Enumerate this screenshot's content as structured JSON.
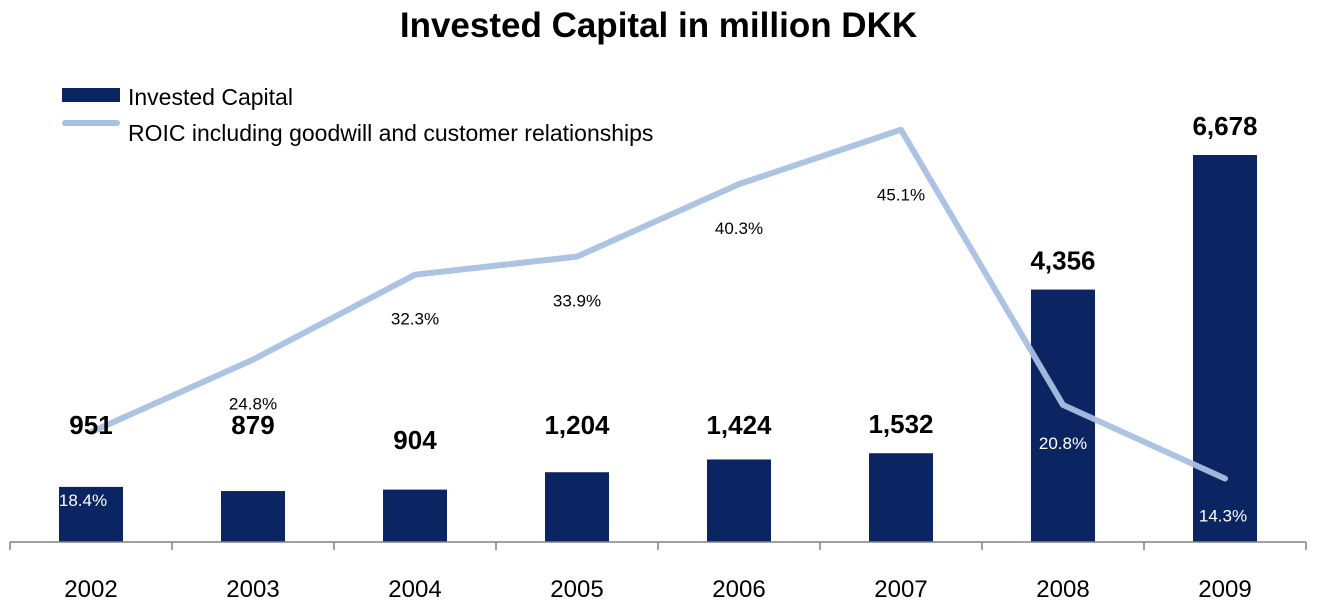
{
  "chart_data": {
    "type": "bar",
    "title": "Invested Capital in million DKK",
    "categories": [
      "2002",
      "2003",
      "2004",
      "2005",
      "2006",
      "2007",
      "2008",
      "2009"
    ],
    "series": [
      {
        "name": "Invested Capital",
        "kind": "bar",
        "values": [
          951,
          879,
          904,
          1204,
          1424,
          1532,
          4356,
          6678
        ],
        "labels": [
          "951",
          "879",
          "904",
          "1,204",
          "1,424",
          "1,532",
          "4,356",
          "6,678"
        ],
        "color": "#0b2462"
      },
      {
        "name": "ROIC including goodwill and customer relationships",
        "kind": "line",
        "values": [
          18.4,
          24.8,
          32.3,
          33.9,
          40.3,
          45.1,
          20.8,
          14.3
        ],
        "labels": [
          "18.4%",
          "24.8%",
          "32.3%",
          "33.9%",
          "40.3%",
          "45.1%",
          "20.8%",
          "14.3%"
        ],
        "color": "#a9c0e2"
      }
    ],
    "legend_position": "top-left",
    "grid": false
  }
}
